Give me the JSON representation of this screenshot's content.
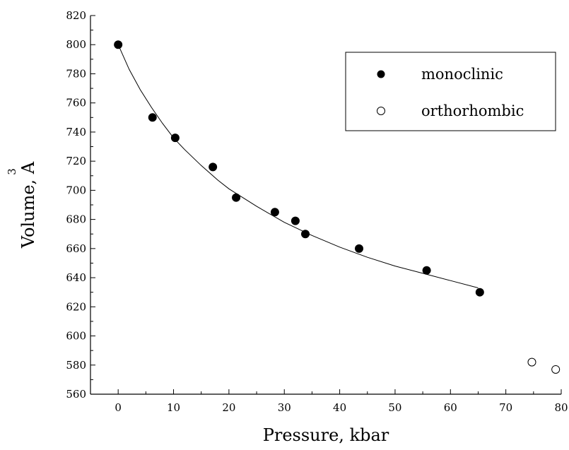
{
  "chart_data": {
    "type": "scatter",
    "xlabel": "Pressure, kbar",
    "ylabel": "Volume, A",
    "ylabel_superscript": "3",
    "xlim": [
      -5,
      80
    ],
    "ylim": [
      560,
      820
    ],
    "x_ticks": [
      0,
      10,
      20,
      30,
      40,
      50,
      60,
      70,
      80
    ],
    "y_ticks": [
      560,
      580,
      600,
      620,
      640,
      660,
      680,
      700,
      720,
      740,
      760,
      780,
      800,
      820
    ],
    "legend_position": "top-right",
    "grid": false,
    "series": [
      {
        "name": "monoclinic",
        "marker": "filled-circle",
        "color": "#000000",
        "x": [
          0,
          6.2,
          10.3,
          17.1,
          21.3,
          28.3,
          32.0,
          33.8,
          43.5,
          55.7,
          65.3
        ],
        "y": [
          800,
          750,
          736,
          716,
          695,
          685,
          679,
          670,
          660,
          645,
          630
        ]
      },
      {
        "name": "orthorhombic",
        "marker": "open-circle",
        "color": "#000000",
        "x": [
          74.7,
          79.0
        ],
        "y": [
          582,
          577
        ]
      }
    ],
    "fit_curve": {
      "style": "thin-line",
      "x": [
        0,
        2,
        4,
        6,
        8,
        10,
        12,
        15,
        18,
        20,
        25,
        30,
        35,
        40,
        45,
        50,
        55,
        60,
        65
      ],
      "y": [
        800,
        783,
        769,
        757,
        746,
        736,
        728,
        717,
        707,
        701,
        689,
        678,
        669,
        661,
        654,
        648,
        643,
        638,
        633
      ]
    }
  }
}
